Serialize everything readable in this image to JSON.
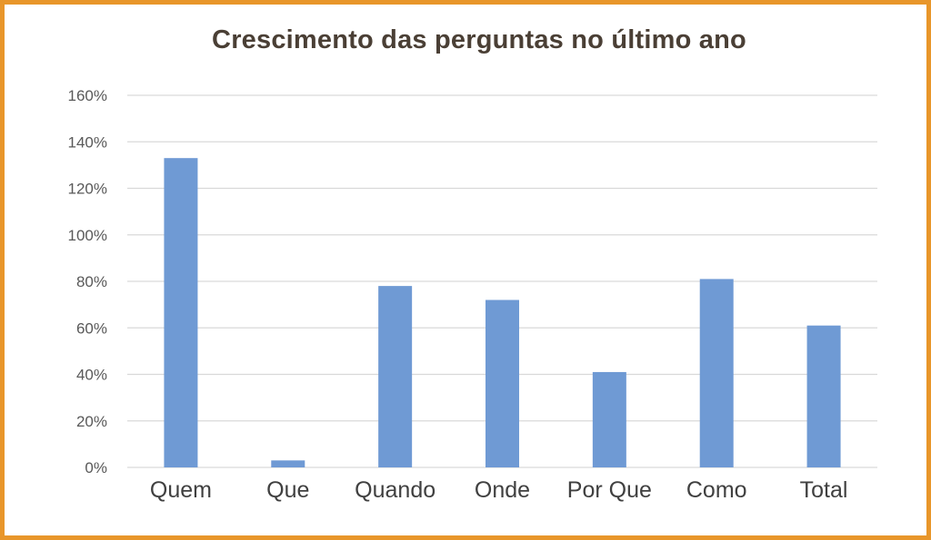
{
  "chart_data": {
    "type": "bar",
    "title": "Crescimento das perguntas no último ano",
    "xlabel": "",
    "ylabel": "",
    "categories": [
      "Quem",
      "Que",
      "Quando",
      "Onde",
      "Por Que",
      "Como",
      "Total"
    ],
    "values": [
      133,
      3,
      78,
      72,
      41,
      81,
      61
    ],
    "value_unit": "%",
    "ylim": [
      0,
      160
    ],
    "yticks": [
      "0%",
      "20%",
      "40%",
      "60%",
      "80%",
      "100%",
      "120%",
      "140%",
      "160%"
    ],
    "grid": true,
    "legend": "none",
    "colors": {
      "bar": "#6f9ad4",
      "grid": "#d9d9d9",
      "frame": "#e8962a",
      "title": "#4a3f35"
    }
  }
}
